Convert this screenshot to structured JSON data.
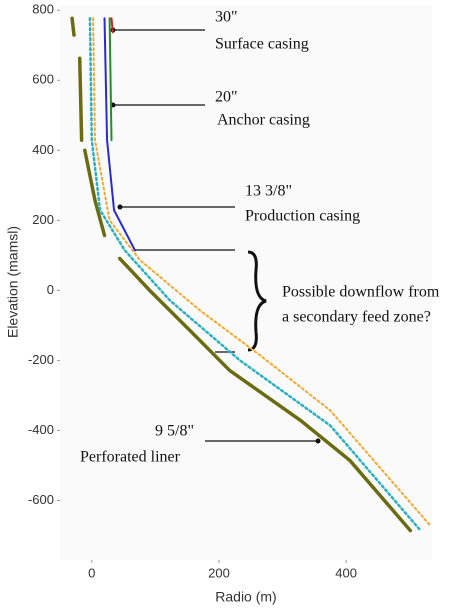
{
  "chart_data": {
    "type": "line",
    "xlabel": "Radio (m)",
    "ylabel": "Elevation (mamsl)",
    "xlim": [
      -50,
      535
    ],
    "ylim": [
      -770,
      815
    ],
    "xticks": [
      0,
      200,
      400
    ],
    "yticks": [
      -600,
      -400,
      -200,
      0,
      200,
      400,
      600,
      800
    ],
    "grid": false,
    "series": [
      {
        "color": "#6b6b12",
        "width": 3.5,
        "dash": "none",
        "x": [
          -31,
          -28,
          null,
          -19,
          -16,
          null,
          -11,
          5,
          20,
          null,
          44,
          91,
          154,
          217,
          328,
          406,
          501
        ],
        "values": [
          777,
          729,
          null,
          663,
          429,
          null,
          400,
          257,
          157,
          null,
          91,
          0,
          -114,
          -229,
          -371,
          -486,
          -686
        ]
      },
      {
        "color": "#f0a830",
        "width": 2,
        "dash": "2 3",
        "x": [
          2,
          5,
          28,
          76,
          170,
          265,
          375,
          532
        ],
        "values": [
          777,
          429,
          200,
          86,
          -57,
          -186,
          -343,
          -671
        ]
      },
      {
        "color": "#2ab0c0",
        "width": 2.5,
        "dash": "2 3",
        "x": [
          -3,
          0,
          13,
          52,
          123,
          233,
          375,
          517
        ],
        "values": [
          777,
          429,
          229,
          114,
          -29,
          -200,
          -386,
          -686
        ]
      },
      {
        "color": "#2b2bd0",
        "width": 2,
        "dash": "none",
        "x": [
          20,
          24,
          35,
          68
        ],
        "values": [
          777,
          429,
          229,
          114
        ]
      },
      {
        "color": "#2a8a2a",
        "width": 2,
        "dash": "none",
        "x": [
          28,
          31
        ],
        "values": [
          777,
          429
        ]
      },
      {
        "color": "#d02020",
        "width": 2,
        "dash": "none",
        "x": [
          31,
          33
        ],
        "values": [
          777,
          737
        ]
      }
    ],
    "annotations": [
      "30\"",
      "Surface casing",
      "20\"",
      "Anchor casing",
      "13 3/8\"",
      "Production casing",
      "Possible downflow from",
      "a secondary feed zone?",
      "9 5/8\"",
      "Perforated liner"
    ]
  }
}
